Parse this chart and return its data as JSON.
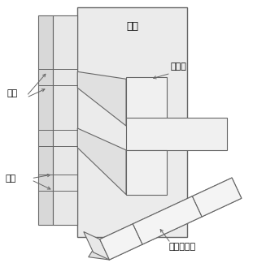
{
  "background_color": "#ffffff",
  "line_color": "#666666",
  "fill_light": "#f0f0f0",
  "fill_mid": "#e0e0e0",
  "fill_dark": "#d0d0d0",
  "labels": {
    "tu_cang": "土舱",
    "dao_pan": "刀盘",
    "dao_pan_bi": "刀盘臂",
    "kong_dao": "孔道",
    "luo_xuan": "螺旋排土器"
  }
}
